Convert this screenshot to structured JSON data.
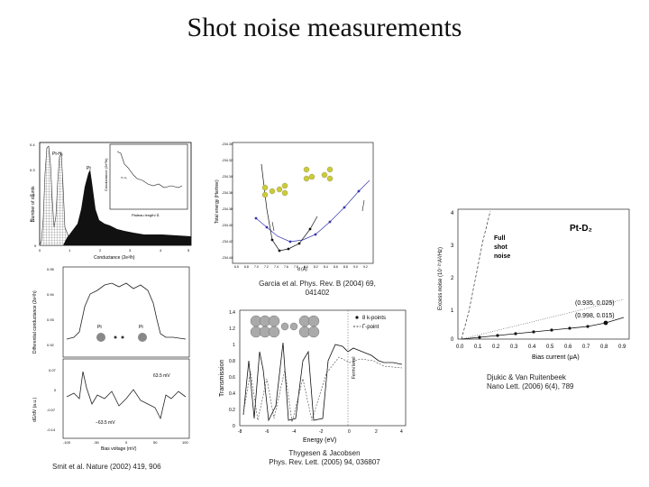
{
  "slide": {
    "title": "Shot noise measurements"
  },
  "captions": {
    "garcia_line1": "Garcia et al. Phys. Rev. B (2004) 69,",
    "garcia_line2": "041402",
    "thygesen_line1": "Thygesen & Jacobsen",
    "thygesen_line2": "Phys. Rev. Lett. (2005) 94, 036807",
    "djukic_line1": "Djukic & Van Ruitenbeek",
    "djukic_line2": "Nano Lett. (2006) 6(4), 789",
    "smit": "Smit et al. Nature (2002) 419, 906"
  },
  "panel_histogram": {
    "ylabel": "Number of counts",
    "xlabel": "Conductance (2e²/h)",
    "label_h2": "Pt-H₂",
    "label_pt": "Pt",
    "inset_ylabel": "Conductance (2e²/h)",
    "inset_xlabel": "Plateau length/ Å",
    "y_ticks": [
      "0.4",
      "0.3",
      "0.2",
      "0.1",
      "0"
    ],
    "x_ticks": [
      "0",
      "1",
      "2",
      "3",
      "4",
      "5"
    ]
  },
  "panel_energy": {
    "ylabel": "Total energy (Hartree)",
    "xlabel": "d (Å)",
    "y_ticks": [
      "-234.30",
      "-234.32",
      "-234.34",
      "-234.36",
      "-234.38",
      "-234.40",
      "-234.42",
      "-234.44"
    ],
    "x_ticks": [
      "6.5",
      "6.8",
      "7.0",
      "7.2",
      "7.4",
      "7.6",
      "7.8",
      "8.0",
      "8.2",
      "8.4",
      "8.6",
      "8.8",
      "9.0",
      "9.2"
    ]
  },
  "panel_conductance": {
    "ylabel_top": "Differential conductance (2e²/h)",
    "ylabel_bottom": "dG/dV (a.u.)",
    "xlabel": "Bias voltage (mV)",
    "label_pt_left": "Pt",
    "label_pt_right": "Pt",
    "label_plus": "63.5 mV",
    "label_minus": "−63.5 mV",
    "y_ticks_top": [
      "0.95",
      "0.94",
      "0.93",
      "0.92"
    ],
    "y_ticks_bottom": [
      "0.07",
      "0",
      "-0.07",
      "-0.14"
    ],
    "x_ticks": [
      "-100",
      "-50",
      "0",
      "50",
      "100"
    ]
  },
  "panel_transmission": {
    "ylabel": "Transmission",
    "xlabel": "Energy (eV)",
    "legend_k": "8 k-points",
    "legend_gamma": "Γ-point",
    "annotation": "Fermi level",
    "y_ticks": [
      "1.4",
      "1.2",
      "1",
      "0.8",
      "0.6",
      "0.4",
      "0.2",
      "0"
    ],
    "x_ticks": [
      "-8",
      "-6",
      "-4",
      "-2",
      "0",
      "2",
      "4"
    ]
  },
  "panel_noise": {
    "ylabel": "Excess noise (10⁻²⁷A²/Hz)",
    "xlabel": "Bias current (μA)",
    "label_system": "Pt-D₂",
    "label_full": "Full",
    "label_shot": "shot",
    "label_noise": "noise",
    "label_fit1": "(0.935, 0.025)",
    "label_fit2": "(0.998, 0.015)",
    "y_ticks": [
      "4",
      "3",
      "2",
      "1",
      "0"
    ],
    "x_ticks": [
      "0.0",
      "0.1",
      "0.2",
      "0.3",
      "0.4",
      "0.5",
      "0.6",
      "0.7",
      "0.8",
      "0.9"
    ]
  }
}
